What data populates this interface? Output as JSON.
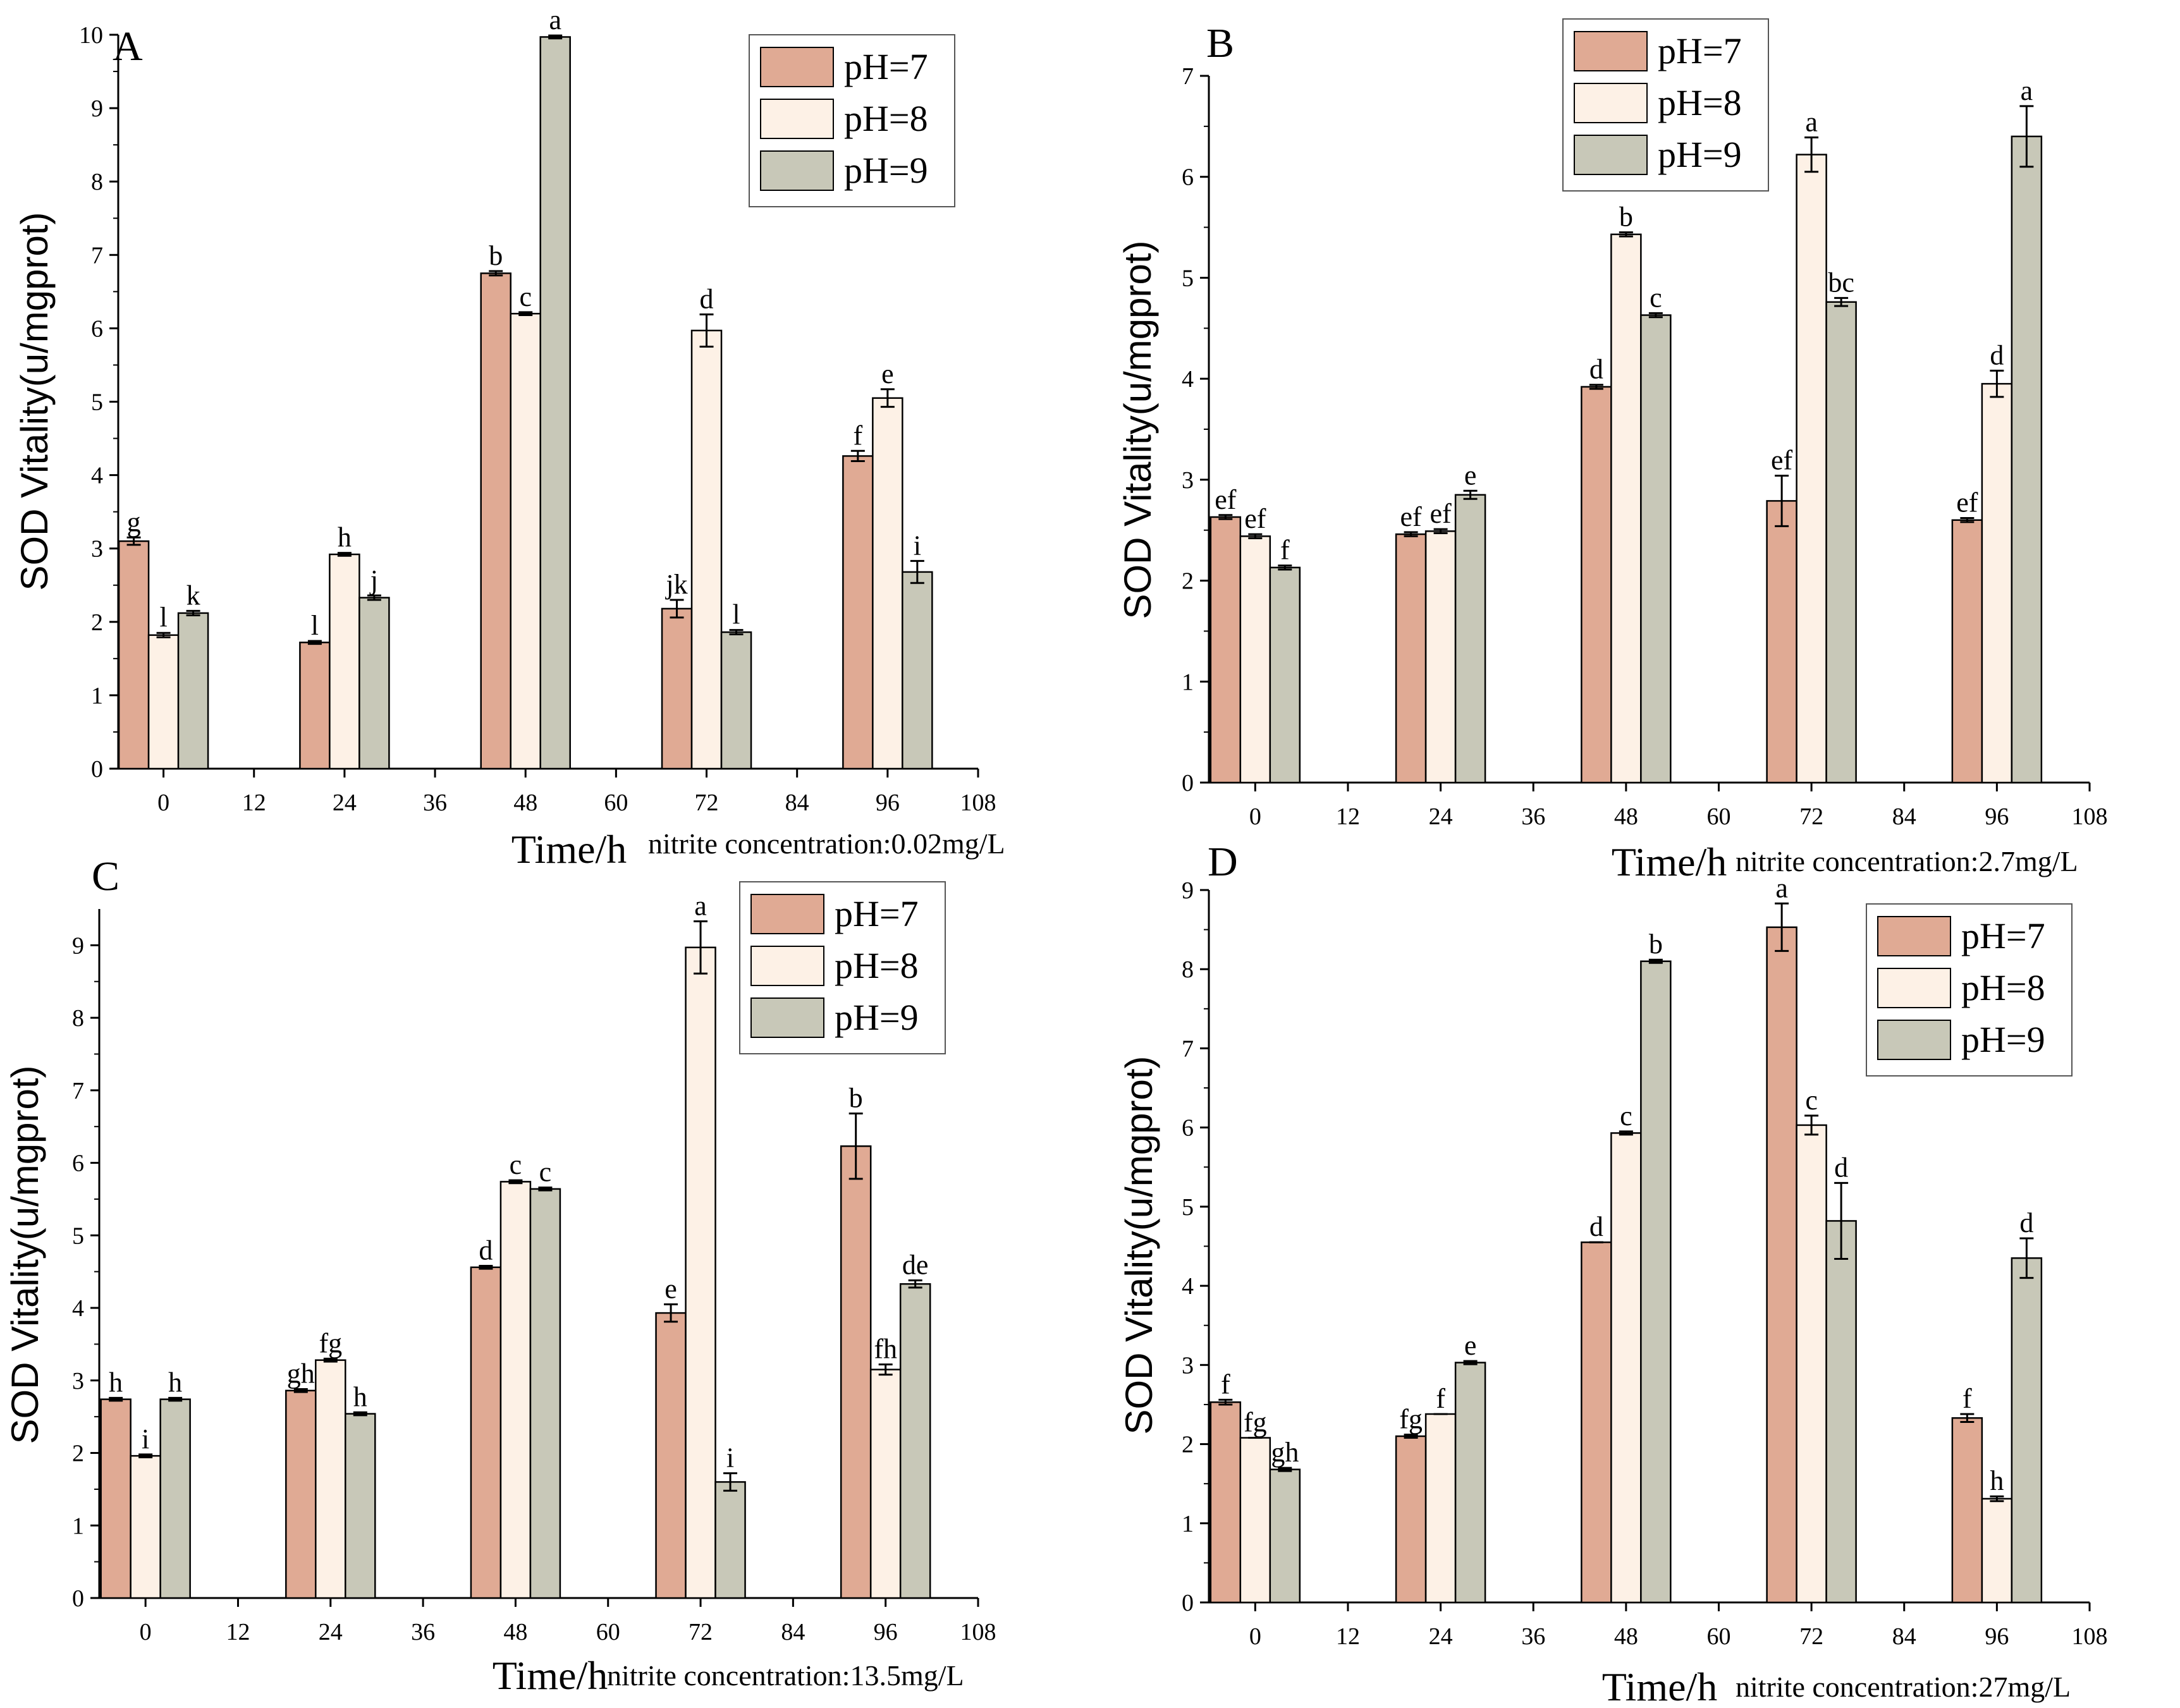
{
  "chart_data": [
    {
      "panel": "A",
      "type": "bar",
      "categories": [
        "0",
        "24",
        "48",
        "72",
        "96"
      ],
      "category_x": [
        0,
        24,
        48,
        72,
        96
      ],
      "x_ticks": [
        "0",
        "12",
        "24",
        "36",
        "48",
        "60",
        "72",
        "84",
        "96",
        "108"
      ],
      "xlim": [
        -6,
        108
      ],
      "y_ticks": [
        "0",
        "1",
        "2",
        "3",
        "4",
        "5",
        "6",
        "7",
        "8",
        "9",
        "10"
      ],
      "ylim": [
        0,
        10
      ],
      "ylabel": "SOD Vitality(u/mgprot)",
      "xlabel": "Time/h",
      "note": "nitrite concentration:0.02mg/L",
      "series": [
        {
          "name": "pH=7",
          "values": [
            3.1,
            1.72,
            6.75,
            2.18,
            4.26
          ],
          "errors": [
            0.05,
            0.02,
            0.03,
            0.12,
            0.07
          ],
          "letters": [
            "g",
            "l",
            "b",
            "jk",
            "f"
          ]
        },
        {
          "name": "pH=8",
          "values": [
            1.82,
            2.92,
            6.2,
            5.97,
            5.05
          ],
          "errors": [
            0.03,
            0.02,
            0.02,
            0.22,
            0.12
          ],
          "letters": [
            "l",
            "h",
            "c",
            "d",
            "e"
          ]
        },
        {
          "name": "pH=9",
          "values": [
            2.12,
            2.33,
            9.97,
            1.86,
            2.68
          ],
          "errors": [
            0.03,
            0.03,
            0.02,
            0.03,
            0.15
          ],
          "letters": [
            "k",
            "j",
            "a",
            "l",
            "i"
          ]
        }
      ]
    },
    {
      "panel": "B",
      "type": "bar",
      "categories": [
        "0",
        "24",
        "48",
        "72",
        "96"
      ],
      "category_x": [
        0,
        24,
        48,
        72,
        96
      ],
      "x_ticks": [
        "0",
        "12",
        "24",
        "36",
        "48",
        "60",
        "72",
        "84",
        "96",
        "108"
      ],
      "xlim": [
        -6,
        108
      ],
      "y_ticks": [
        "0",
        "1",
        "2",
        "3",
        "4",
        "5",
        "6",
        "7"
      ],
      "ylim": [
        0,
        7
      ],
      "ylabel": "SOD Vitality(u/mgprot)",
      "xlabel": "Time/h",
      "note": "nitrite concentration:2.7mg/L",
      "series": [
        {
          "name": "pH=7",
          "values": [
            2.63,
            2.46,
            3.92,
            2.79,
            2.6
          ],
          "errors": [
            0.02,
            0.02,
            0.02,
            0.25,
            0.02
          ],
          "letters": [
            "ef",
            "ef",
            "d",
            "ef",
            "ef"
          ]
        },
        {
          "name": "pH=8",
          "values": [
            2.44,
            2.49,
            5.43,
            6.22,
            3.95
          ],
          "errors": [
            0.02,
            0.02,
            0.02,
            0.17,
            0.13
          ],
          "letters": [
            "ef",
            "ef",
            "b",
            "a",
            "d"
          ]
        },
        {
          "name": "pH=9",
          "values": [
            2.13,
            2.85,
            4.63,
            4.76,
            6.4
          ],
          "errors": [
            0.02,
            0.04,
            0.02,
            0.04,
            0.3
          ],
          "letters": [
            "f",
            "e",
            "c",
            "bc",
            "a"
          ]
        }
      ]
    },
    {
      "panel": "C",
      "type": "bar",
      "categories": [
        "0",
        "24",
        "48",
        "72",
        "96"
      ],
      "category_x": [
        0,
        24,
        48,
        72,
        96
      ],
      "x_ticks": [
        "0",
        "12",
        "24",
        "36",
        "48",
        "60",
        "72",
        "84",
        "96",
        "108"
      ],
      "xlim": [
        -6,
        108
      ],
      "y_ticks": [
        "0",
        "1",
        "2",
        "3",
        "4",
        "5",
        "6",
        "7",
        "8",
        "9"
      ],
      "ylim": [
        0,
        9.5
      ],
      "ylabel": "SOD Vitality(u/mgprot)",
      "xlabel": "Time/h",
      "note": "nitrite concentration:13.5mg/L",
      "series": [
        {
          "name": "pH=7",
          "values": [
            2.74,
            2.86,
            4.56,
            3.93,
            6.23
          ],
          "errors": [
            0.02,
            0.02,
            0.02,
            0.12,
            0.45
          ],
          "letters": [
            "h",
            "gh",
            "d",
            "e",
            "b"
          ]
        },
        {
          "name": "pH=8",
          "values": [
            1.96,
            3.28,
            5.74,
            8.97,
            3.15
          ],
          "errors": [
            0.02,
            0.02,
            0.02,
            0.36,
            0.07
          ],
          "letters": [
            "i",
            "fg",
            "c",
            "a",
            "fh"
          ]
        },
        {
          "name": "pH=9",
          "values": [
            2.74,
            2.54,
            5.64,
            1.6,
            4.33
          ],
          "errors": [
            0.02,
            0.02,
            0.02,
            0.12,
            0.05
          ],
          "letters": [
            "h",
            "h",
            "c",
            "i",
            "de"
          ]
        }
      ]
    },
    {
      "panel": "D",
      "type": "bar",
      "categories": [
        "0",
        "24",
        "48",
        "72",
        "96"
      ],
      "category_x": [
        0,
        24,
        48,
        72,
        96
      ],
      "x_ticks": [
        "0",
        "12",
        "24",
        "36",
        "48",
        "60",
        "72",
        "84",
        "96",
        "108"
      ],
      "xlim": [
        -6,
        108
      ],
      "y_ticks": [
        "0",
        "1",
        "2",
        "3",
        "4",
        "5",
        "6",
        "7",
        "8",
        "9"
      ],
      "ylim": [
        0,
        9
      ],
      "ylabel": "SOD Vitality(u/mgprot)",
      "xlabel": "Time/h",
      "note": "nitrite concentration:27mg/L",
      "series": [
        {
          "name": "pH=7",
          "values": [
            2.53,
            2.1,
            4.55,
            8.53,
            2.33
          ],
          "errors": [
            0.03,
            0.02,
            0.0,
            0.3,
            0.05
          ],
          "letters": [
            "f",
            "fg",
            "d",
            "a",
            "f"
          ]
        },
        {
          "name": "pH=8",
          "values": [
            2.08,
            2.38,
            5.93,
            6.03,
            1.31
          ],
          "errors": [
            0.0,
            0.0,
            0.02,
            0.12,
            0.03
          ],
          "letters": [
            "fg",
            "f",
            "c",
            "c",
            "h"
          ]
        },
        {
          "name": "pH=9",
          "values": [
            1.68,
            3.03,
            8.1,
            4.82,
            4.35
          ],
          "errors": [
            0.02,
            0.02,
            0.02,
            0.48,
            0.25
          ],
          "letters": [
            "gh",
            "e",
            "b",
            "d",
            "d"
          ]
        }
      ]
    }
  ],
  "colors": {
    "pH=7": "#e0aa94",
    "pH=8": "#fdf1e6",
    "pH=9": "#c8c8b8",
    "outline": "#000000"
  }
}
